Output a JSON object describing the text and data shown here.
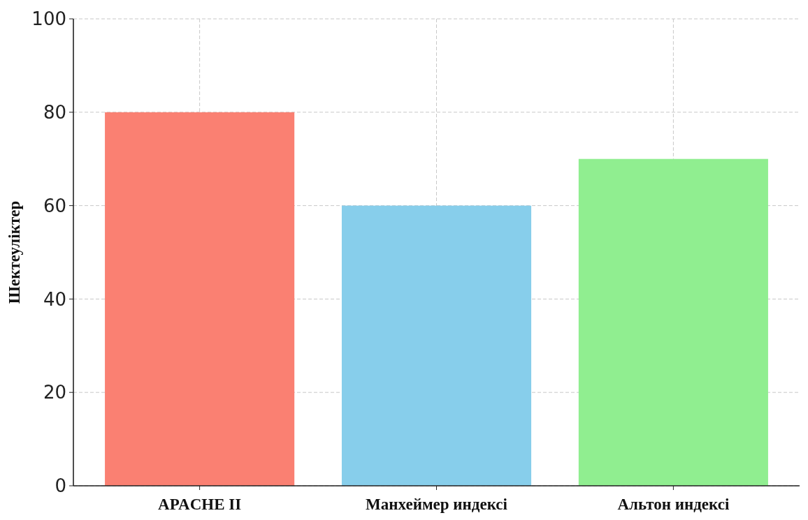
{
  "chart_data": {
    "type": "bar",
    "ylabel": "Шектеуліктер",
    "categories": [
      "APACHE II",
      "Манхеймер индексі",
      "Альтон индексі"
    ],
    "values": [
      80,
      60,
      70
    ],
    "colors": [
      "#fa8072",
      "#87ceeb",
      "#90ee90"
    ],
    "ylim": [
      0,
      100
    ],
    "yticks": [
      0,
      20,
      40,
      60,
      80,
      100
    ],
    "grid": true
  }
}
